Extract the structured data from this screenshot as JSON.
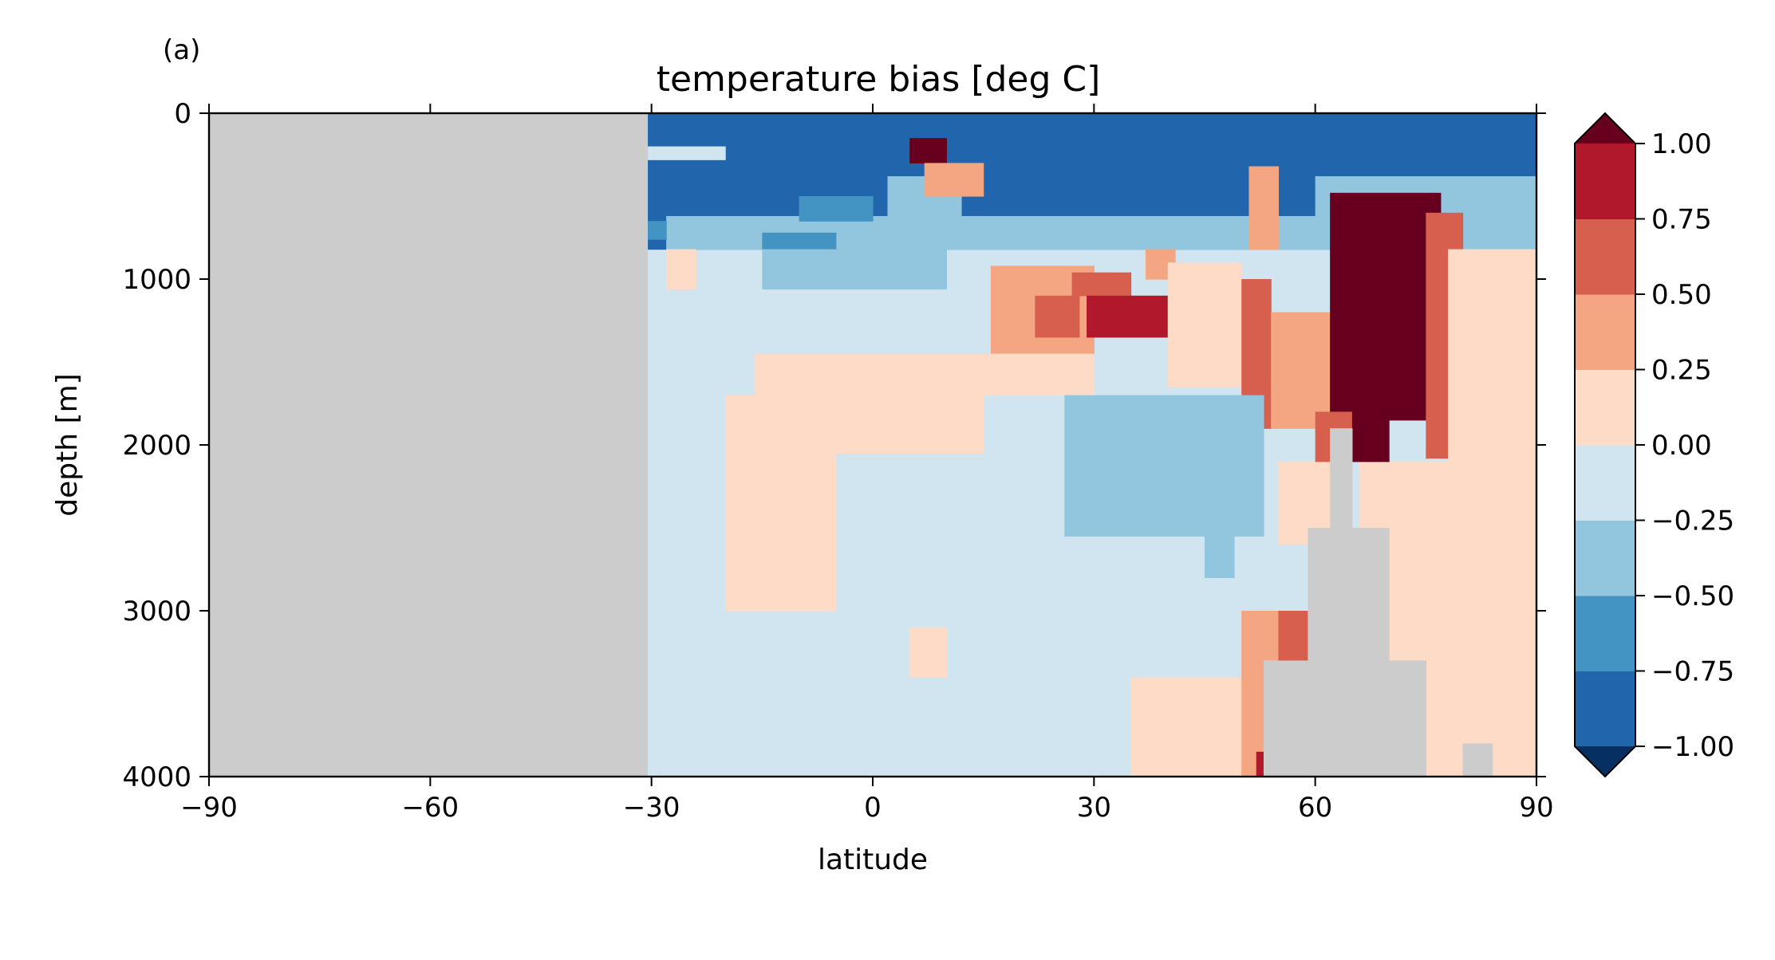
{
  "chart_data": {
    "type": "heatmap",
    "panel_label": "(a)",
    "title": "temperature bias [deg C]",
    "xlabel": "latitude",
    "ylabel": "depth [m]",
    "xlim": [
      -90,
      90
    ],
    "ylim": [
      4000,
      0
    ],
    "x_ticks": [
      -90,
      -60,
      -30,
      0,
      30,
      60,
      90
    ],
    "x_tick_labels": [
      "−90",
      "−60",
      "−30",
      "0",
      "30",
      "60",
      "90"
    ],
    "y_ticks": [
      0,
      1000,
      2000,
      3000,
      4000
    ],
    "y_tick_labels": [
      "0",
      "1000",
      "2000",
      "3000",
      "4000"
    ],
    "colorbar": {
      "levels": [
        -1.0,
        -0.75,
        -0.5,
        -0.25,
        0.0,
        0.25,
        0.5,
        0.75,
        1.0
      ],
      "tick_labels": [
        "−1.00",
        "−0.75",
        "−0.50",
        "−0.25",
        "0.00",
        "0.25",
        "0.50",
        "0.75",
        "1.00"
      ],
      "extend": "both",
      "colors": [
        "#053061",
        "#2166ac",
        "#4393c3",
        "#92c5de",
        "#d1e5f0",
        "#fddbc7",
        "#f4a582",
        "#d6604d",
        "#b2182b",
        "#67001f"
      ]
    },
    "land_color": "#cccccc",
    "grid": false,
    "regions": [
      {
        "lat": [
          -90,
          -30.5
        ],
        "depth": [
          0,
          4000
        ],
        "value": null
      },
      {
        "lat": [
          -30.5,
          90
        ],
        "depth": [
          0,
          4000
        ],
        "value": -0.1
      },
      {
        "lat": [
          -30.5,
          90
        ],
        "depth": [
          0,
          820
        ],
        "value": -0.8
      },
      {
        "lat": [
          -30.5,
          -20
        ],
        "depth": [
          200,
          280
        ],
        "value": -0.1
      },
      {
        "lat": [
          -28,
          90
        ],
        "depth": [
          620,
          820
        ],
        "value": -0.3
      },
      {
        "lat": [
          -30.5,
          -28
        ],
        "depth": [
          650,
          760
        ],
        "value": -0.6
      },
      {
        "lat": [
          -15,
          -5
        ],
        "depth": [
          720,
          820
        ],
        "value": -0.6
      },
      {
        "lat": [
          -10,
          0
        ],
        "depth": [
          500,
          650
        ],
        "value": -0.6
      },
      {
        "lat": [
          2,
          12
        ],
        "depth": [
          380,
          650
        ],
        "value": -0.3
      },
      {
        "lat": [
          5,
          10
        ],
        "depth": [
          150,
          300
        ],
        "value": 1.05
      },
      {
        "lat": [
          7,
          15
        ],
        "depth": [
          300,
          500
        ],
        "value": 0.4
      },
      {
        "lat": [
          37,
          41
        ],
        "depth": [
          820,
          1000
        ],
        "value": 0.3
      },
      {
        "lat": [
          51,
          55
        ],
        "depth": [
          320,
          820
        ],
        "value": 0.3
      },
      {
        "lat": [
          60,
          90
        ],
        "depth": [
          380,
          820
        ],
        "value": -0.3
      },
      {
        "lat": [
          -28,
          -24
        ],
        "depth": [
          820,
          1060
        ],
        "value": 0.1
      },
      {
        "lat": [
          -15,
          10
        ],
        "depth": [
          820,
          1060
        ],
        "value": -0.3
      },
      {
        "lat": [
          16,
          30
        ],
        "depth": [
          920,
          1450
        ],
        "value": 0.3
      },
      {
        "lat": [
          27,
          35
        ],
        "depth": [
          960,
          1100
        ],
        "value": 0.5
      },
      {
        "lat": [
          22,
          28
        ],
        "depth": [
          1100,
          1350
        ],
        "value": 0.5
      },
      {
        "lat": [
          29,
          40
        ],
        "depth": [
          1100,
          1350
        ],
        "value": 0.8
      },
      {
        "lat": [
          40,
          50
        ],
        "depth": [
          900,
          1650
        ],
        "value": 0.2
      },
      {
        "lat": [
          50,
          54
        ],
        "depth": [
          1000,
          1900
        ],
        "value": 0.5
      },
      {
        "lat": [
          54,
          62
        ],
        "depth": [
          1200,
          1900
        ],
        "value": 0.3
      },
      {
        "lat": [
          62,
          77
        ],
        "depth": [
          480,
          1850
        ],
        "value": 1.05
      },
      {
        "lat": [
          75,
          80
        ],
        "depth": [
          600,
          2080
        ],
        "value": 0.6
      },
      {
        "lat": [
          78,
          90
        ],
        "depth": [
          820,
          3400
        ],
        "value": 0.1
      },
      {
        "lat": [
          -16,
          30
        ],
        "depth": [
          1450,
          1700
        ],
        "value": 0.1
      },
      {
        "lat": [
          -20,
          -5
        ],
        "depth": [
          1700,
          3000
        ],
        "value": 0.1
      },
      {
        "lat": [
          -5,
          15
        ],
        "depth": [
          1700,
          2050
        ],
        "value": 0.1
      },
      {
        "lat": [
          26,
          53
        ],
        "depth": [
          1700,
          2550
        ],
        "value": -0.3
      },
      {
        "lat": [
          45,
          49
        ],
        "depth": [
          2550,
          2800
        ],
        "value": -0.3
      },
      {
        "lat": [
          55,
          65
        ],
        "depth": [
          2100,
          2600
        ],
        "value": 0.1
      },
      {
        "lat": [
          66,
          80
        ],
        "depth": [
          2100,
          3600
        ],
        "value": 0.1
      },
      {
        "lat": [
          5,
          10
        ],
        "depth": [
          3100,
          3400
        ],
        "value": 0.1
      },
      {
        "lat": [
          35,
          90
        ],
        "depth": [
          3400,
          4000
        ],
        "value": 0.1
      },
      {
        "lat": [
          50,
          55
        ],
        "depth": [
          3000,
          4000
        ],
        "value": 0.4
      },
      {
        "lat": [
          55,
          60
        ],
        "depth": [
          3000,
          3300
        ],
        "value": 0.5
      },
      {
        "lat": [
          55,
          58
        ],
        "depth": [
          3300,
          3850
        ],
        "value": 0.8
      },
      {
        "lat": [
          52,
          54
        ],
        "depth": [
          3850,
          4000
        ],
        "value": 0.9
      },
      {
        "lat": [
          60,
          65
        ],
        "depth": [
          1800,
          2100
        ],
        "value": 0.6
      },
      {
        "lat": [
          65,
          70
        ],
        "depth": [
          1800,
          2100
        ],
        "value": 1.05
      },
      {
        "lat": [
          60,
          62
        ],
        "depth": [
          2500,
          2750
        ],
        "value": 0.8
      },
      {
        "lat": [
          62,
          65
        ],
        "depth": [
          1900,
          4000
        ],
        "value": null
      },
      {
        "lat": [
          59,
          70
        ],
        "depth": [
          2500,
          4000
        ],
        "value": null
      },
      {
        "lat": [
          53,
          75
        ],
        "depth": [
          3300,
          4000
        ],
        "value": null
      },
      {
        "lat": [
          80,
          84
        ],
        "depth": [
          3800,
          4000
        ],
        "value": null
      }
    ]
  }
}
